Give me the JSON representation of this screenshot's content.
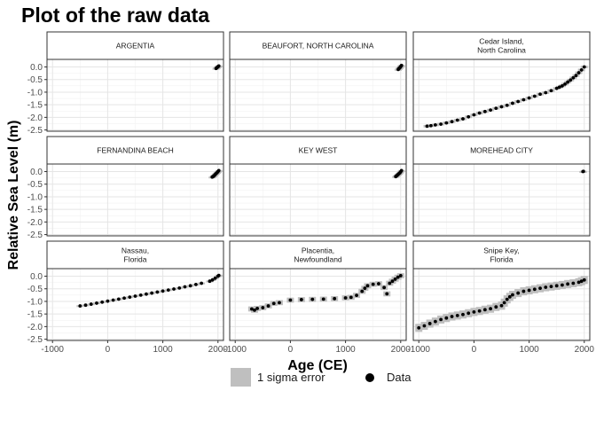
{
  "title": "Plot of the raw data",
  "xlabel": "Age (CE)",
  "ylabel": "Relative Sea Level (m)",
  "legend": {
    "error_label": "1 sigma error",
    "data_label": "Data",
    "error_color": "#bfbfbf",
    "data_color": "#000000"
  },
  "colors": {
    "strip_fill": "#ffffff",
    "panel_border": "#333333",
    "grid_major": "#e5e5e5",
    "grid_minor": "#f2f2f2",
    "error_fill": "#bfbfbf",
    "point": "#000000"
  },
  "chart_data": {
    "type": "scatter",
    "facet_layout": "3x3",
    "xlim": [
      -1100,
      2100
    ],
    "ylim": [
      -2.55,
      0.3
    ],
    "x_ticks": [
      -1000,
      0,
      1000,
      2000
    ],
    "x_tick_labels": [
      "-1000",
      "0",
      "1000",
      "2000"
    ],
    "y_ticks": [
      0,
      -0.5,
      -1,
      -1.5,
      -2,
      -2.5
    ],
    "y_tick_labels": [
      "0.0",
      "-0.5",
      "-1.0",
      "-1.5",
      "-2.0",
      "-2.5"
    ],
    "grid": true,
    "legend_position": "bottom",
    "panels": [
      {
        "title": [
          "ARGENTIA"
        ],
        "error_sd": 0.02,
        "data": [
          [
            1965,
            -0.06
          ],
          [
            1975,
            -0.04
          ],
          [
            1985,
            -0.02
          ],
          [
            1995,
            0.0
          ],
          [
            2005,
            0.02
          ],
          [
            2015,
            0.04
          ]
        ]
      },
      {
        "title": [
          "BEAUFORT, NORTH CAROLINA"
        ],
        "error_sd": 0.02,
        "data": [
          [
            1955,
            -0.1
          ],
          [
            1965,
            -0.07
          ],
          [
            1975,
            -0.05
          ],
          [
            1985,
            -0.03
          ],
          [
            1995,
            0.0
          ],
          [
            2005,
            0.03
          ],
          [
            2015,
            0.06
          ]
        ]
      },
      {
        "title": [
          "Cedar Island,",
          "North Carolina"
        ],
        "error_sd": 0.05,
        "data": [
          [
            -850,
            -2.35
          ],
          [
            -780,
            -2.33
          ],
          [
            -700,
            -2.3
          ],
          [
            -600,
            -2.27
          ],
          [
            -500,
            -2.22
          ],
          [
            -400,
            -2.17
          ],
          [
            -300,
            -2.11
          ],
          [
            -200,
            -2.06
          ],
          [
            -100,
            -1.98
          ],
          [
            0,
            -1.9
          ],
          [
            100,
            -1.83
          ],
          [
            200,
            -1.77
          ],
          [
            300,
            -1.71
          ],
          [
            400,
            -1.64
          ],
          [
            500,
            -1.58
          ],
          [
            600,
            -1.52
          ],
          [
            700,
            -1.44
          ],
          [
            800,
            -1.37
          ],
          [
            900,
            -1.3
          ],
          [
            1000,
            -1.23
          ],
          [
            1100,
            -1.16
          ],
          [
            1200,
            -1.08
          ],
          [
            1300,
            -1.02
          ],
          [
            1400,
            -0.94
          ],
          [
            1500,
            -0.85
          ],
          [
            1550,
            -0.8
          ],
          [
            1600,
            -0.75
          ],
          [
            1650,
            -0.68
          ],
          [
            1700,
            -0.6
          ],
          [
            1750,
            -0.52
          ],
          [
            1800,
            -0.43
          ],
          [
            1850,
            -0.34
          ],
          [
            1900,
            -0.23
          ],
          [
            1950,
            -0.12
          ],
          [
            2000,
            0.0
          ]
        ]
      },
      {
        "title": [
          "FERNANDINA BEACH"
        ],
        "error_sd": 0.02,
        "data": [
          [
            1895,
            -0.22
          ],
          [
            1910,
            -0.2
          ],
          [
            1925,
            -0.17
          ],
          [
            1940,
            -0.14
          ],
          [
            1955,
            -0.1
          ],
          [
            1970,
            -0.07
          ],
          [
            1985,
            -0.04
          ],
          [
            2000,
            0.0
          ],
          [
            2015,
            0.04
          ]
        ]
      },
      {
        "title": [
          "KEY WEST"
        ],
        "error_sd": 0.02,
        "data": [
          [
            1910,
            -0.2
          ],
          [
            1925,
            -0.17
          ],
          [
            1940,
            -0.14
          ],
          [
            1955,
            -0.11
          ],
          [
            1970,
            -0.08
          ],
          [
            1985,
            -0.05
          ],
          [
            2000,
            -0.01
          ],
          [
            2015,
            0.04
          ]
        ]
      },
      {
        "title": [
          "MOREHEAD CITY"
        ],
        "error_sd": 0.02,
        "data": [
          [
            1975,
            0.0
          ],
          [
            1985,
            0.01
          ]
        ]
      },
      {
        "title": [
          "Nassau,",
          "Florida"
        ],
        "error_sd": 0.03,
        "data": [
          [
            -500,
            -1.18
          ],
          [
            -400,
            -1.15
          ],
          [
            -300,
            -1.11
          ],
          [
            -200,
            -1.07
          ],
          [
            -100,
            -1.03
          ],
          [
            0,
            -0.99
          ],
          [
            100,
            -0.95
          ],
          [
            200,
            -0.91
          ],
          [
            300,
            -0.87
          ],
          [
            400,
            -0.83
          ],
          [
            500,
            -0.79
          ],
          [
            600,
            -0.75
          ],
          [
            700,
            -0.71
          ],
          [
            800,
            -0.67
          ],
          [
            900,
            -0.63
          ],
          [
            1000,
            -0.59
          ],
          [
            1100,
            -0.55
          ],
          [
            1200,
            -0.51
          ],
          [
            1300,
            -0.47
          ],
          [
            1400,
            -0.42
          ],
          [
            1500,
            -0.38
          ],
          [
            1600,
            -0.33
          ],
          [
            1700,
            -0.28
          ],
          [
            1850,
            -0.2
          ],
          [
            1900,
            -0.15
          ],
          [
            1950,
            -0.08
          ],
          [
            2000,
            0.0
          ],
          [
            2015,
            0.03
          ]
        ]
      },
      {
        "title": [
          "Placentia,",
          "Newfoundland"
        ],
        "error_sd": 0.1,
        "data": [
          [
            -700,
            -1.3
          ],
          [
            -650,
            -1.35
          ],
          [
            -600,
            -1.28
          ],
          [
            -500,
            -1.25
          ],
          [
            -400,
            -1.18
          ],
          [
            -300,
            -1.08
          ],
          [
            -200,
            -1.05
          ],
          [
            0,
            -0.95
          ],
          [
            200,
            -0.93
          ],
          [
            400,
            -0.92
          ],
          [
            600,
            -0.91
          ],
          [
            800,
            -0.89
          ],
          [
            1000,
            -0.86
          ],
          [
            1100,
            -0.84
          ],
          [
            1200,
            -0.76
          ],
          [
            1300,
            -0.6
          ],
          [
            1350,
            -0.48
          ],
          [
            1400,
            -0.38
          ],
          [
            1500,
            -0.32
          ],
          [
            1600,
            -0.3
          ],
          [
            1700,
            -0.45
          ],
          [
            1750,
            -0.7
          ],
          [
            1800,
            -0.28
          ],
          [
            1850,
            -0.2
          ],
          [
            1900,
            -0.12
          ],
          [
            1950,
            -0.04
          ],
          [
            2000,
            0.02
          ]
        ]
      },
      {
        "title": [
          "Snipe Key,",
          "Florida"
        ],
        "error_sd": 0.16,
        "data": [
          [
            -1000,
            -2.05
          ],
          [
            -900,
            -1.97
          ],
          [
            -800,
            -1.88
          ],
          [
            -700,
            -1.8
          ],
          [
            -600,
            -1.72
          ],
          [
            -500,
            -1.66
          ],
          [
            -400,
            -1.6
          ],
          [
            -300,
            -1.56
          ],
          [
            -200,
            -1.52
          ],
          [
            -100,
            -1.47
          ],
          [
            0,
            -1.42
          ],
          [
            100,
            -1.38
          ],
          [
            200,
            -1.33
          ],
          [
            300,
            -1.29
          ],
          [
            400,
            -1.22
          ],
          [
            500,
            -1.17
          ],
          [
            550,
            -1.05
          ],
          [
            600,
            -0.92
          ],
          [
            650,
            -0.82
          ],
          [
            700,
            -0.74
          ],
          [
            800,
            -0.67
          ],
          [
            900,
            -0.6
          ],
          [
            1000,
            -0.56
          ],
          [
            1100,
            -0.52
          ],
          [
            1200,
            -0.48
          ],
          [
            1300,
            -0.44
          ],
          [
            1400,
            -0.41
          ],
          [
            1500,
            -0.38
          ],
          [
            1600,
            -0.35
          ],
          [
            1700,
            -0.31
          ],
          [
            1800,
            -0.28
          ],
          [
            1900,
            -0.24
          ],
          [
            1950,
            -0.2
          ],
          [
            2000,
            -0.15
          ]
        ]
      }
    ]
  }
}
